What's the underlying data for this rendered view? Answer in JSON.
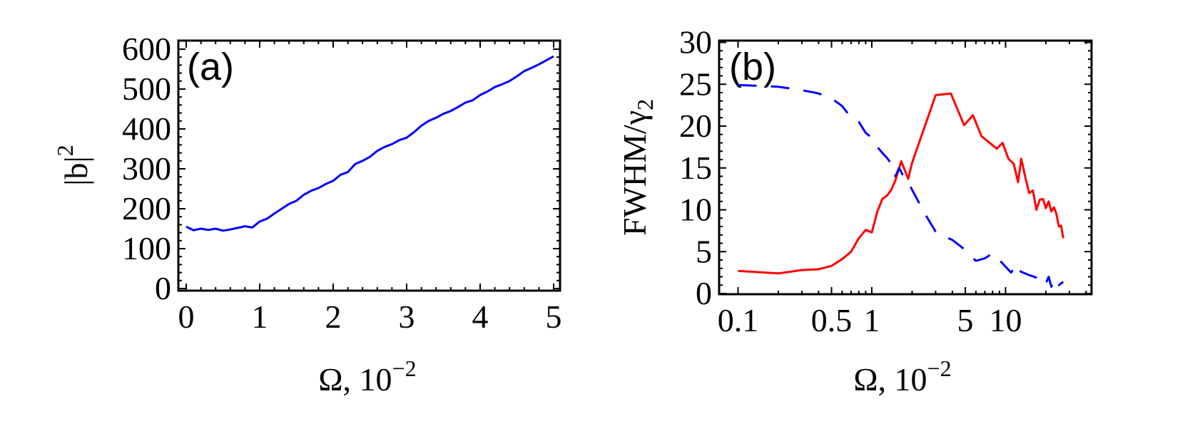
{
  "chart_data": [
    {
      "type": "line",
      "panel_label": "(a)",
      "xlabel": "Ω, 10",
      "xlabel_exp": "−2",
      "ylabel": "|b|",
      "ylabel_exp": "2",
      "xlim": [
        0,
        5
      ],
      "ylim": [
        0,
        600
      ],
      "xticks": [
        0,
        1,
        2,
        3,
        4,
        5
      ],
      "yticks": [
        0,
        100,
        200,
        300,
        400,
        500,
        600
      ],
      "grid": false,
      "series": [
        {
          "color": "#0000ff",
          "style": "solid",
          "x": [
            0,
            0.1,
            0.2,
            0.3,
            0.4,
            0.5,
            0.6,
            0.7,
            0.8,
            0.9,
            1.0,
            1.1,
            1.2,
            1.3,
            1.4,
            1.5,
            1.6,
            1.7,
            1.8,
            1.9,
            2.0,
            2.1,
            2.2,
            2.3,
            2.4,
            2.5,
            2.6,
            2.7,
            2.8,
            2.9,
            3.0,
            3.1,
            3.2,
            3.3,
            3.4,
            3.5,
            3.6,
            3.7,
            3.8,
            3.9,
            4.0,
            4.1,
            4.2,
            4.3,
            4.4,
            4.5,
            4.6,
            4.7,
            4.8,
            4.9,
            5.0
          ],
          "y": [
            155,
            146,
            150,
            147,
            150,
            145,
            148,
            152,
            156,
            153,
            168,
            175,
            188,
            200,
            212,
            220,
            235,
            245,
            252,
            262,
            270,
            285,
            292,
            312,
            320,
            330,
            345,
            355,
            362,
            372,
            378,
            392,
            408,
            420,
            428,
            438,
            445,
            455,
            466,
            472,
            485,
            494,
            505,
            512,
            520,
            532,
            545,
            553,
            562,
            572,
            582
          ]
        }
      ]
    },
    {
      "type": "line",
      "panel_label": "(b)",
      "xlabel": "Ω, 10",
      "xlabel_exp": "−2",
      "ylabel": "FWHM/γ",
      "ylabel_sub": "2",
      "xscale": "log",
      "xlim": [
        0.073,
        44
      ],
      "ylim": [
        0,
        30
      ],
      "xticks": [
        0.1,
        0.5,
        1,
        5,
        10
      ],
      "xtick_labels": [
        "0.1",
        "0.5",
        "1",
        "5",
        "10"
      ],
      "yticks": [
        0,
        5,
        10,
        15,
        20,
        25,
        30
      ],
      "grid": false,
      "series": [
        {
          "color": "#ff0000",
          "style": "solid",
          "x": [
            0.1,
            0.2,
            0.3,
            0.4,
            0.5,
            0.6,
            0.7,
            0.8,
            0.9,
            1.0,
            1.1,
            1.2,
            1.3,
            1.4,
            1.5,
            1.66,
            1.87,
            2.0,
            3.0,
            3.9,
            4.9,
            5.7,
            6.6,
            8.6,
            9.5,
            10.5,
            11.5,
            12.4,
            13.1,
            14,
            15,
            16,
            17,
            18,
            19,
            20,
            21,
            22,
            23,
            24,
            25,
            26,
            27
          ],
          "y": [
            2.7,
            2.4,
            2.8,
            2.9,
            3.3,
            4.1,
            5.0,
            6.6,
            7.6,
            7.3,
            9.8,
            11.3,
            11.7,
            12.4,
            13.5,
            15.8,
            13.7,
            15.6,
            23.7,
            23.9,
            20.1,
            21.3,
            18.8,
            17.3,
            18.0,
            16.1,
            15.5,
            13.3,
            16.1,
            14.0,
            12.0,
            12.3,
            10.0,
            11.2,
            11.3,
            10.2,
            11.0,
            9.8,
            10.3,
            9.5,
            8.0,
            8.1,
            6.6
          ]
        },
        {
          "color": "#0000ff",
          "style": "dashed",
          "x": [
            0.1,
            0.15,
            0.2,
            0.3,
            0.4,
            0.5,
            0.6,
            0.7,
            0.8,
            0.9,
            1.0,
            1.1,
            1.2,
            1.3,
            1.4,
            1.5,
            1.6,
            1.7,
            1.8,
            2.0,
            2.5,
            3.0,
            3.5,
            4.0,
            5.0,
            6.0,
            7.0,
            8.0,
            9.0,
            10,
            11,
            12,
            13,
            15,
            17,
            18,
            19,
            20,
            21,
            22,
            23,
            25,
            27
          ],
          "y": [
            24.9,
            24.8,
            24.7,
            24.3,
            23.9,
            23.3,
            22.4,
            21.0,
            20.5,
            19.2,
            18.6,
            17.5,
            16.8,
            16.2,
            15.5,
            14.0,
            15.0,
            14.2,
            13.8,
            12.4,
            9.5,
            7.4,
            6.8,
            6.4,
            5.2,
            3.9,
            4.2,
            4.8,
            4.0,
            3.2,
            2.5,
            3.5,
            2.6,
            2.2,
            1.9,
            1.5,
            1.7,
            1.2,
            2.0,
            0.8,
            1.8,
            1.0,
            1.4
          ]
        }
      ]
    }
  ]
}
